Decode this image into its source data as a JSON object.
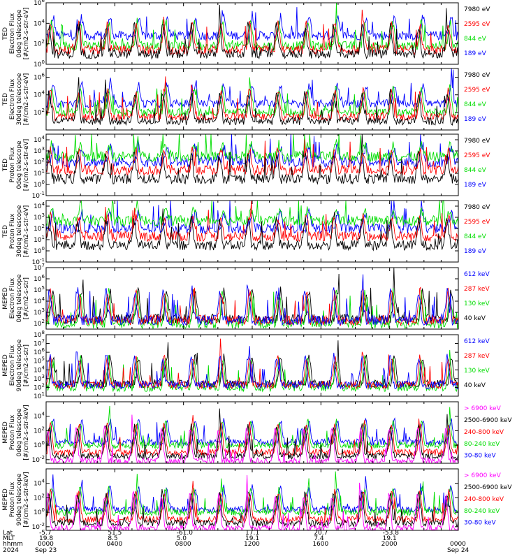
{
  "chart_data": {
    "type": "line",
    "time_axis": {
      "rows": [
        {
          "label": "Lat",
          "values": [
            "-5.7",
            "51.5",
            "-61.0",
            "17.1",
            "20.7",
            "-53.8"
          ]
        },
        {
          "label": "MLT",
          "values": [
            "19.8",
            "8.5",
            "5.0",
            "19.1",
            "7.4",
            "19.1"
          ]
        },
        {
          "label": "hhmm",
          "values": [
            "0000",
            "0400",
            "0800",
            "1200",
            "1600",
            "2000",
            "0000"
          ]
        },
        {
          "label": "2024",
          "values": [
            "Sep 23",
            "Sep 24"
          ]
        }
      ],
      "major_ticks_hours": [
        0,
        4,
        8,
        12,
        16,
        20,
        24
      ],
      "xlim_hours": [
        0,
        24
      ]
    },
    "panels": [
      {
        "ylabel": [
          "TED",
          "Electron Flux",
          "0deg telescope",
          "[#/cm2-s-str-eV]"
        ],
        "yticks": [
          "10^0",
          "10^2",
          "10^4",
          "10^6"
        ],
        "ylim_log10": [
          0,
          6
        ],
        "series": [
          {
            "name": "7980 eV",
            "color": "#000000",
            "level": 1.0
          },
          {
            "name": "2595 eV",
            "color": "#ff0000",
            "level": 1.4
          },
          {
            "name": "844 eV",
            "color": "#00dd00",
            "level": 1.8
          },
          {
            "name": "189 eV",
            "color": "#0000ff",
            "level": 2.8
          }
        ]
      },
      {
        "ylabel": [
          "TED",
          "Electron Flux",
          "30deg telescope",
          "[#/cm2-s-str-eV]"
        ],
        "yticks": [
          "10^2",
          "10^4",
          "10^6"
        ],
        "ylim_log10": [
          0,
          7
        ],
        "series": [
          {
            "name": "7980 eV",
            "color": "#000000",
            "level": 1.0
          },
          {
            "name": "2595 eV",
            "color": "#ff0000",
            "level": 1.5
          },
          {
            "name": "844 eV",
            "color": "#00dd00",
            "level": 2.0
          },
          {
            "name": "189 eV",
            "color": "#0000ff",
            "level": 3.0
          }
        ]
      },
      {
        "ylabel": [
          "TED",
          "Proton Flux",
          "0deg telescope",
          "[#/cm2-s-str-eV]"
        ],
        "yticks": [
          "10^-1",
          "10^0",
          "10^1",
          "10^2",
          "10^3",
          "10^4"
        ],
        "ylim_log10": [
          -1,
          4.5
        ],
        "series": [
          {
            "name": "7980 eV",
            "color": "#000000",
            "level": 0.5
          },
          {
            "name": "2595 eV",
            "color": "#ff0000",
            "level": 1.3
          },
          {
            "name": "844 eV",
            "color": "#00dd00",
            "level": 2.5
          },
          {
            "name": "189 eV",
            "color": "#0000ff",
            "level": 2.0
          }
        ]
      },
      {
        "ylabel": [
          "TED",
          "Proton Flux",
          "30deg telescope",
          "[#/cm2-s-str-eV]"
        ],
        "yticks": [
          "10^-1",
          "10^0",
          "10^1",
          "10^2",
          "10^3",
          "10^4"
        ],
        "ylim_log10": [
          -1,
          4.5
        ],
        "series": [
          {
            "name": "7980 eV",
            "color": "#000000",
            "level": 0.5
          },
          {
            "name": "2595 eV",
            "color": "#ff0000",
            "level": 1.3
          },
          {
            "name": "844 eV",
            "color": "#00dd00",
            "level": 2.7
          },
          {
            "name": "189 eV",
            "color": "#0000ff",
            "level": 2.0
          }
        ]
      },
      {
        "ylabel": [
          "MEPED",
          "Electron Flux",
          "0deg telescope",
          "[#/cm2-s-str]"
        ],
        "yticks": [
          "10^2",
          "10^3",
          "10^4",
          "10^5",
          "10^6",
          "10^7"
        ],
        "ylim_log10": [
          1.5,
          7
        ],
        "series": [
          {
            "name": "612 keV",
            "color": "#0000ff",
            "level": 2.3
          },
          {
            "name": "287 keV",
            "color": "#ff0000",
            "level": 2.3
          },
          {
            "name": "130 keV",
            "color": "#00dd00",
            "level": 2.0
          },
          {
            "name": "40 keV",
            "color": "#000000",
            "level": 2.4
          }
        ]
      },
      {
        "ylabel": [
          "MEPED",
          "Electron Flux",
          "90deg telescope",
          "[#/cm2-s-str]"
        ],
        "yticks": [
          "10^1",
          "10^2",
          "10^3",
          "10^4",
          "10^5",
          "10^6",
          "10^7",
          "10^8"
        ],
        "ylim_log10": [
          1,
          8
        ],
        "series": [
          {
            "name": "612 keV",
            "color": "#0000ff",
            "level": 2.3
          },
          {
            "name": "287 keV",
            "color": "#ff0000",
            "level": 2.3
          },
          {
            "name": "130 keV",
            "color": "#00dd00",
            "level": 2.0
          },
          {
            "name": "40 keV",
            "color": "#000000",
            "level": 2.4
          }
        ]
      },
      {
        "ylabel": [
          "MEPED",
          "Proton Flux",
          "0deg telescope",
          "[#/cm2-s-str-keV]"
        ],
        "yticks": [
          "10^-2",
          "10^0",
          "10^2",
          "10^4"
        ],
        "ylim_log10": [
          -2.5,
          6
        ],
        "series": [
          {
            "name": "> 6900 keV",
            "color": "#ff00ff",
            "level": -2.2
          },
          {
            "name": "2500-6900 keV",
            "color": "#000000",
            "level": -1.5
          },
          {
            "name": "240-800 keV",
            "color": "#ff0000",
            "level": -1.0
          },
          {
            "name": "80-240 keV",
            "color": "#00dd00",
            "level": 0.0
          },
          {
            "name": "30-80 keV",
            "color": "#0000ff",
            "level": 0.4
          }
        ]
      },
      {
        "ylabel": [
          "MEPED",
          "Proton Flux",
          "90deg telescope",
          "[#/cm2-s-str-keV]"
        ],
        "yticks": [
          "10^-2",
          "10^0",
          "10^2",
          "10^4"
        ],
        "ylim_log10": [
          -2.5,
          6
        ],
        "series": [
          {
            "name": "> 6900 keV",
            "color": "#ff00ff",
            "level": -2.2
          },
          {
            "name": "2500-6900 keV",
            "color": "#000000",
            "level": -1.5
          },
          {
            "name": "240-800 keV",
            "color": "#ff0000",
            "level": -1.0
          },
          {
            "name": "80-240 keV",
            "color": "#00dd00",
            "level": 0.0
          },
          {
            "name": "30-80 keV",
            "color": "#0000ff",
            "level": 0.4
          }
        ]
      }
    ]
  }
}
